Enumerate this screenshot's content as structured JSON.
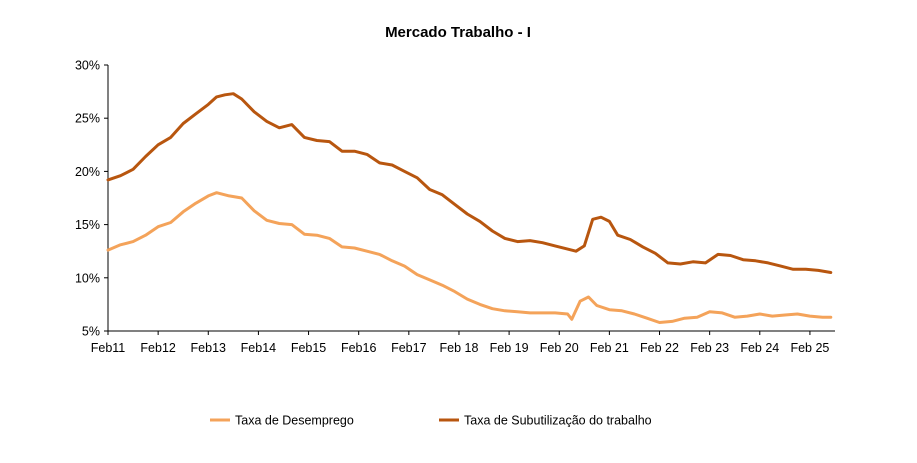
{
  "chart_data": {
    "type": "line",
    "title": "Mercado Trabalho  -  I",
    "xlabel": "",
    "ylabel": "",
    "ylim": [
      0.05,
      0.3
    ],
    "y_ticks": [
      0.05,
      0.1,
      0.15,
      0.2,
      0.25,
      0.3
    ],
    "y_tick_labels": [
      "5%",
      "10%",
      "15%",
      "20%",
      "25%",
      "30%"
    ],
    "x_ticks": [
      "2011-02",
      "2012-02",
      "2013-02",
      "2014-02",
      "2015-02",
      "2016-02",
      "2017-02",
      "2018-02",
      "2019-02",
      "2020-02",
      "2021-02",
      "2022-02",
      "2023-02",
      "2024-02",
      "2025-02"
    ],
    "x_tick_labels": [
      "Feb11",
      "Feb12",
      "Feb13",
      "Feb14",
      "Feb15",
      "Feb16",
      "Feb17",
      "Feb 18",
      "Feb 19",
      "Feb 20",
      "Feb 21",
      "Feb 22",
      "Feb 23",
      "Feb 24",
      "Feb 25"
    ],
    "grid": false,
    "legend_position": "bottom",
    "series": [
      {
        "name": "Taxa de Desemprego",
        "color": "#F4A35A",
        "points": [
          [
            "2011-02",
            0.126
          ],
          [
            "2011-05",
            0.131
          ],
          [
            "2011-08",
            0.134
          ],
          [
            "2011-11",
            0.14
          ],
          [
            "2012-02",
            0.148
          ],
          [
            "2012-05",
            0.152
          ],
          [
            "2012-08",
            0.162
          ],
          [
            "2012-11",
            0.17
          ],
          [
            "2013-02",
            0.177
          ],
          [
            "2013-04",
            0.18
          ],
          [
            "2013-07",
            0.177
          ],
          [
            "2013-10",
            0.175
          ],
          [
            "2014-01",
            0.163
          ],
          [
            "2014-04",
            0.154
          ],
          [
            "2014-07",
            0.151
          ],
          [
            "2014-10",
            0.15
          ],
          [
            "2015-01",
            0.141
          ],
          [
            "2015-04",
            0.14
          ],
          [
            "2015-07",
            0.137
          ],
          [
            "2015-10",
            0.129
          ],
          [
            "2016-01",
            0.128
          ],
          [
            "2016-04",
            0.125
          ],
          [
            "2016-07",
            0.122
          ],
          [
            "2016-10",
            0.116
          ],
          [
            "2017-01",
            0.111
          ],
          [
            "2017-04",
            0.103
          ],
          [
            "2017-07",
            0.098
          ],
          [
            "2017-10",
            0.093
          ],
          [
            "2018-01",
            0.087
          ],
          [
            "2018-04",
            0.08
          ],
          [
            "2018-07",
            0.075
          ],
          [
            "2018-10",
            0.071
          ],
          [
            "2019-01",
            0.069
          ],
          [
            "2019-04",
            0.068
          ],
          [
            "2019-07",
            0.067
          ],
          [
            "2019-10",
            0.067
          ],
          [
            "2020-01",
            0.067
          ],
          [
            "2020-04",
            0.066
          ],
          [
            "2020-05",
            0.061
          ],
          [
            "2020-07",
            0.078
          ],
          [
            "2020-09",
            0.082
          ],
          [
            "2020-11",
            0.074
          ],
          [
            "2021-02",
            0.07
          ],
          [
            "2021-05",
            0.069
          ],
          [
            "2021-08",
            0.066
          ],
          [
            "2021-11",
            0.062
          ],
          [
            "2022-02",
            0.058
          ],
          [
            "2022-05",
            0.059
          ],
          [
            "2022-08",
            0.062
          ],
          [
            "2022-11",
            0.063
          ],
          [
            "2023-02",
            0.068
          ],
          [
            "2023-05",
            0.067
          ],
          [
            "2023-08",
            0.063
          ],
          [
            "2023-11",
            0.064
          ],
          [
            "2024-02",
            0.066
          ],
          [
            "2024-05",
            0.064
          ],
          [
            "2024-08",
            0.065
          ],
          [
            "2024-11",
            0.066
          ],
          [
            "2025-02",
            0.064
          ],
          [
            "2025-05",
            0.063
          ],
          [
            "2025-07",
            0.063
          ]
        ]
      },
      {
        "name": "Taxa de Subutilização do trabalho",
        "color": "#B8560F",
        "points": [
          [
            "2011-02",
            0.192
          ],
          [
            "2011-05",
            0.196
          ],
          [
            "2011-08",
            0.202
          ],
          [
            "2011-11",
            0.214
          ],
          [
            "2012-02",
            0.225
          ],
          [
            "2012-05",
            0.232
          ],
          [
            "2012-08",
            0.245
          ],
          [
            "2012-11",
            0.254
          ],
          [
            "2013-02",
            0.263
          ],
          [
            "2013-04",
            0.27
          ],
          [
            "2013-06",
            0.272
          ],
          [
            "2013-08",
            0.273
          ],
          [
            "2013-10",
            0.268
          ],
          [
            "2014-01",
            0.256
          ],
          [
            "2014-04",
            0.247
          ],
          [
            "2014-07",
            0.241
          ],
          [
            "2014-10",
            0.244
          ],
          [
            "2015-01",
            0.232
          ],
          [
            "2015-04",
            0.229
          ],
          [
            "2015-07",
            0.228
          ],
          [
            "2015-10",
            0.219
          ],
          [
            "2016-01",
            0.219
          ],
          [
            "2016-04",
            0.216
          ],
          [
            "2016-07",
            0.208
          ],
          [
            "2016-10",
            0.206
          ],
          [
            "2017-01",
            0.2
          ],
          [
            "2017-04",
            0.194
          ],
          [
            "2017-07",
            0.183
          ],
          [
            "2017-10",
            0.178
          ],
          [
            "2018-01",
            0.169
          ],
          [
            "2018-04",
            0.16
          ],
          [
            "2018-07",
            0.153
          ],
          [
            "2018-10",
            0.144
          ],
          [
            "2019-01",
            0.137
          ],
          [
            "2019-04",
            0.134
          ],
          [
            "2019-07",
            0.135
          ],
          [
            "2019-10",
            0.133
          ],
          [
            "2020-01",
            0.13
          ],
          [
            "2020-04",
            0.127
          ],
          [
            "2020-06",
            0.125
          ],
          [
            "2020-08",
            0.13
          ],
          [
            "2020-10",
            0.155
          ],
          [
            "2020-12",
            0.157
          ],
          [
            "2021-02",
            0.153
          ],
          [
            "2021-04",
            0.14
          ],
          [
            "2021-07",
            0.136
          ],
          [
            "2021-10",
            0.129
          ],
          [
            "2022-01",
            0.123
          ],
          [
            "2022-04",
            0.114
          ],
          [
            "2022-07",
            0.113
          ],
          [
            "2022-10",
            0.115
          ],
          [
            "2023-01",
            0.114
          ],
          [
            "2023-04",
            0.122
          ],
          [
            "2023-07",
            0.121
          ],
          [
            "2023-10",
            0.117
          ],
          [
            "2024-01",
            0.116
          ],
          [
            "2024-04",
            0.114
          ],
          [
            "2024-07",
            0.111
          ],
          [
            "2024-10",
            0.108
          ],
          [
            "2025-01",
            0.108
          ],
          [
            "2025-04",
            0.107
          ],
          [
            "2025-07",
            0.105
          ]
        ]
      }
    ]
  }
}
